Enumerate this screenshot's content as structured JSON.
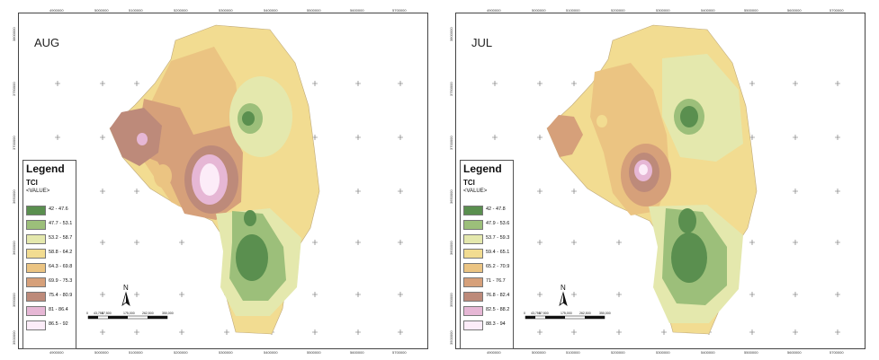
{
  "maps": [
    {
      "title": "AUG",
      "legend": {
        "title": "Legend",
        "field": "TCI",
        "value_label": "<VALUE>",
        "classes": [
          {
            "label": "42 - 47.6",
            "color": "#5a8f4f"
          },
          {
            "label": "47.7 - 53.1",
            "color": "#9cbf7a"
          },
          {
            "label": "53.2 - 58.7",
            "color": "#e4e8ad"
          },
          {
            "label": "58.8 - 64.2",
            "color": "#f2dc91"
          },
          {
            "label": "64.3 - 69.8",
            "color": "#ebc482"
          },
          {
            "label": "69.9 - 75.3",
            "color": "#d6a07a"
          },
          {
            "label": "75.4 - 80.9",
            "color": "#bd8a7a"
          },
          {
            "label": "81 - 86.4",
            "color": "#e6b7d5"
          },
          {
            "label": "86.5 - 92",
            "color": "#fcecf8"
          }
        ]
      }
    },
    {
      "title": "JUL",
      "legend": {
        "title": "Legend",
        "field": "TCI",
        "value_label": "<VALUE>",
        "classes": [
          {
            "label": "42 - 47.8",
            "color": "#5a8f4f"
          },
          {
            "label": "47.9 - 53.6",
            "color": "#9cbf7a"
          },
          {
            "label": "53.7 - 59.3",
            "color": "#e4e8ad"
          },
          {
            "label": "59.4 - 65.1",
            "color": "#f2dc91"
          },
          {
            "label": "65.2 - 70.9",
            "color": "#ebc482"
          },
          {
            "label": "71 - 76.7",
            "color": "#d6a07a"
          },
          {
            "label": "76.8 - 82.4",
            "color": "#bd8a7a"
          },
          {
            "label": "82.5 - 88.2",
            "color": "#e6b7d5"
          },
          {
            "label": "88.3 - 94",
            "color": "#fcecf8"
          }
        ]
      }
    }
  ],
  "x_ticks": [
    "4900000",
    "5000000",
    "5100000",
    "5200000",
    "5300000",
    "5400000",
    "5500000",
    "5600000",
    "5700000"
  ],
  "y_ticks": [
    "3800000",
    "3750000",
    "3700000",
    "3650000",
    "3600000",
    "3550000",
    "3500000"
  ],
  "north_label": "N",
  "scale_labels": [
    "0",
    "43,750",
    "87,500",
    "175,000",
    "262,500",
    "350,000"
  ]
}
